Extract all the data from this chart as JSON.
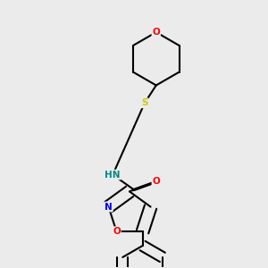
{
  "background_color": "#ebebeb",
  "bond_color": "#000000",
  "atom_colors": {
    "O": "#ff0000",
    "N": "#0000ff",
    "S": "#cccc00",
    "NH_color": "#008888",
    "C": "#000000"
  },
  "figsize": [
    3.0,
    3.0
  ],
  "dpi": 100,
  "lw": 1.5,
  "fontsize": 7.5
}
